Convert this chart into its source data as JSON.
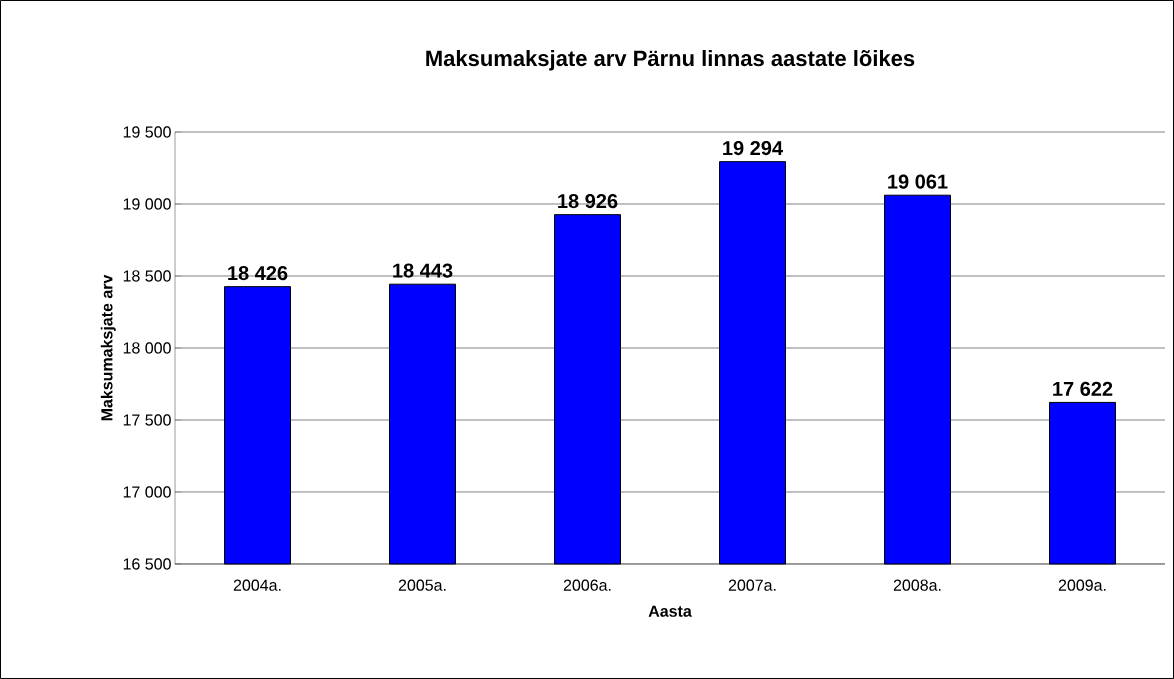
{
  "chart_data": {
    "type": "bar",
    "title": "Maksumaksjate arv Pärnu linnas aastate lõikes",
    "xlabel": "Aasta",
    "ylabel": "Maksumaksjate arv",
    "categories": [
      "2004a.",
      "2005a.",
      "2006a.",
      "2007a.",
      "2008a.",
      "2009a."
    ],
    "values": [
      18426,
      18443,
      18926,
      19294,
      19061,
      17622
    ],
    "value_labels": [
      "18 426",
      "18 443",
      "18 926",
      "19 294",
      "19 061",
      "17 622"
    ],
    "color": "#0000ff",
    "ylim": [
      16500,
      19500
    ],
    "yticks": [
      {
        "value": 16500,
        "label": "16 500"
      },
      {
        "value": 17000,
        "label": "17 000"
      },
      {
        "value": 17500,
        "label": "17 500"
      },
      {
        "value": 18000,
        "label": "18 000"
      },
      {
        "value": 18500,
        "label": "18 500"
      },
      {
        "value": 19000,
        "label": "19 000"
      },
      {
        "value": 19500,
        "label": "19 500"
      }
    ],
    "grid": "y"
  }
}
